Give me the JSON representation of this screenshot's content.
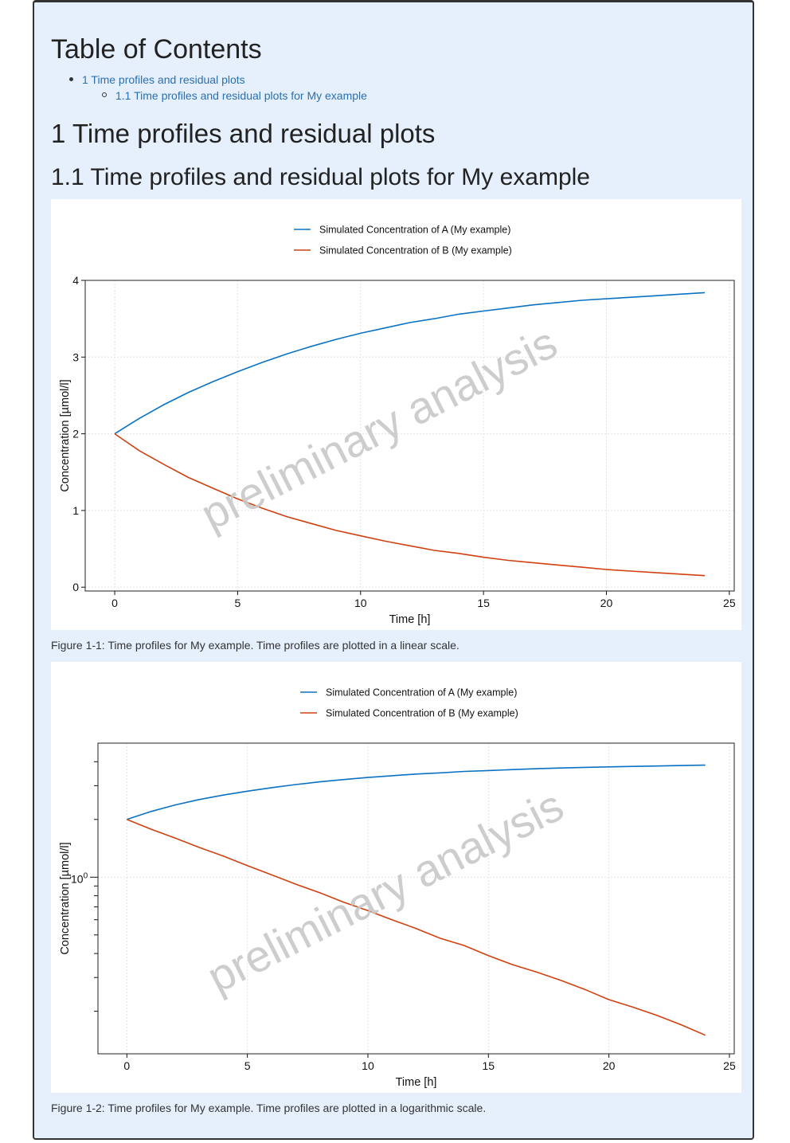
{
  "toc": {
    "title": "Table of Contents",
    "items": [
      {
        "label": "1 Time profiles and residual plots"
      },
      {
        "label": "1.1 Time profiles and residual plots for My example"
      }
    ]
  },
  "section": {
    "h1": "1 Time profiles and residual plots",
    "h2": "1.1 Time profiles and residual plots for My example"
  },
  "colors": {
    "seriesA": "#0a72c4",
    "seriesB": "#d2400f",
    "watermark": "#c8c8c8"
  },
  "watermark": "preliminary analysis",
  "figures": [
    {
      "caption": "Figure 1-1: Time profiles for My example. Time profiles are plotted in a linear scale."
    },
    {
      "caption": "Figure 1-2: Time profiles for My example. Time profiles are plotted in a logarithmic scale."
    }
  ],
  "chart_data": [
    {
      "type": "line",
      "xlabel": "Time [h]",
      "ylabel": "Concentration [µmol/l]",
      "xlim": [
        -1.2,
        25.2
      ],
      "ylim": [
        -0.05,
        4.0
      ],
      "yscale": "linear",
      "xticks": [
        0,
        5,
        10,
        15,
        20,
        25
      ],
      "yticks": [
        0,
        1,
        2,
        3,
        4
      ],
      "grid": true,
      "legend_position": "top-center",
      "x": [
        0,
        1,
        2,
        3,
        4,
        5,
        6,
        7,
        8,
        9,
        10,
        11,
        12,
        13,
        14,
        15,
        16,
        17,
        18,
        19,
        20,
        21,
        22,
        23,
        24
      ],
      "series": [
        {
          "name": "Simulated Concentration of A (My example)",
          "values": [
            2.0,
            2.2,
            2.38,
            2.54,
            2.68,
            2.81,
            2.93,
            3.04,
            3.14,
            3.23,
            3.31,
            3.38,
            3.45,
            3.5,
            3.56,
            3.6,
            3.64,
            3.68,
            3.71,
            3.74,
            3.76,
            3.78,
            3.8,
            3.82,
            3.84
          ]
        },
        {
          "name": "Simulated Concentration of B (My example)",
          "values": [
            2.0,
            1.78,
            1.6,
            1.43,
            1.29,
            1.15,
            1.03,
            0.92,
            0.83,
            0.74,
            0.67,
            0.6,
            0.54,
            0.48,
            0.44,
            0.39,
            0.35,
            0.32,
            0.29,
            0.26,
            0.23,
            0.21,
            0.19,
            0.17,
            0.15
          ]
        }
      ]
    },
    {
      "type": "line",
      "xlabel": "Time [h]",
      "ylabel": "Concentration [µmol/l]",
      "xlim": [
        -1.2,
        25.2
      ],
      "ylim": [
        0.12,
        5.0
      ],
      "yscale": "log",
      "xticks": [
        0,
        5,
        10,
        15,
        20,
        25
      ],
      "ytick_label": "10",
      "ytick_label_exp": "0",
      "grid": true,
      "legend_position": "top-center",
      "x": [
        0,
        1,
        2,
        3,
        4,
        5,
        6,
        7,
        8,
        9,
        10,
        11,
        12,
        13,
        14,
        15,
        16,
        17,
        18,
        19,
        20,
        21,
        22,
        23,
        24
      ],
      "series": [
        {
          "name": "Simulated Concentration of A (My example)",
          "values": [
            2.0,
            2.2,
            2.38,
            2.54,
            2.68,
            2.81,
            2.93,
            3.04,
            3.14,
            3.23,
            3.31,
            3.38,
            3.45,
            3.5,
            3.56,
            3.6,
            3.64,
            3.68,
            3.71,
            3.74,
            3.76,
            3.78,
            3.8,
            3.82,
            3.84
          ]
        },
        {
          "name": "Simulated Concentration of B (My example)",
          "values": [
            2.0,
            1.78,
            1.6,
            1.43,
            1.29,
            1.15,
            1.03,
            0.92,
            0.83,
            0.74,
            0.67,
            0.6,
            0.54,
            0.48,
            0.44,
            0.39,
            0.35,
            0.32,
            0.29,
            0.26,
            0.23,
            0.21,
            0.19,
            0.17,
            0.15
          ]
        }
      ]
    }
  ]
}
